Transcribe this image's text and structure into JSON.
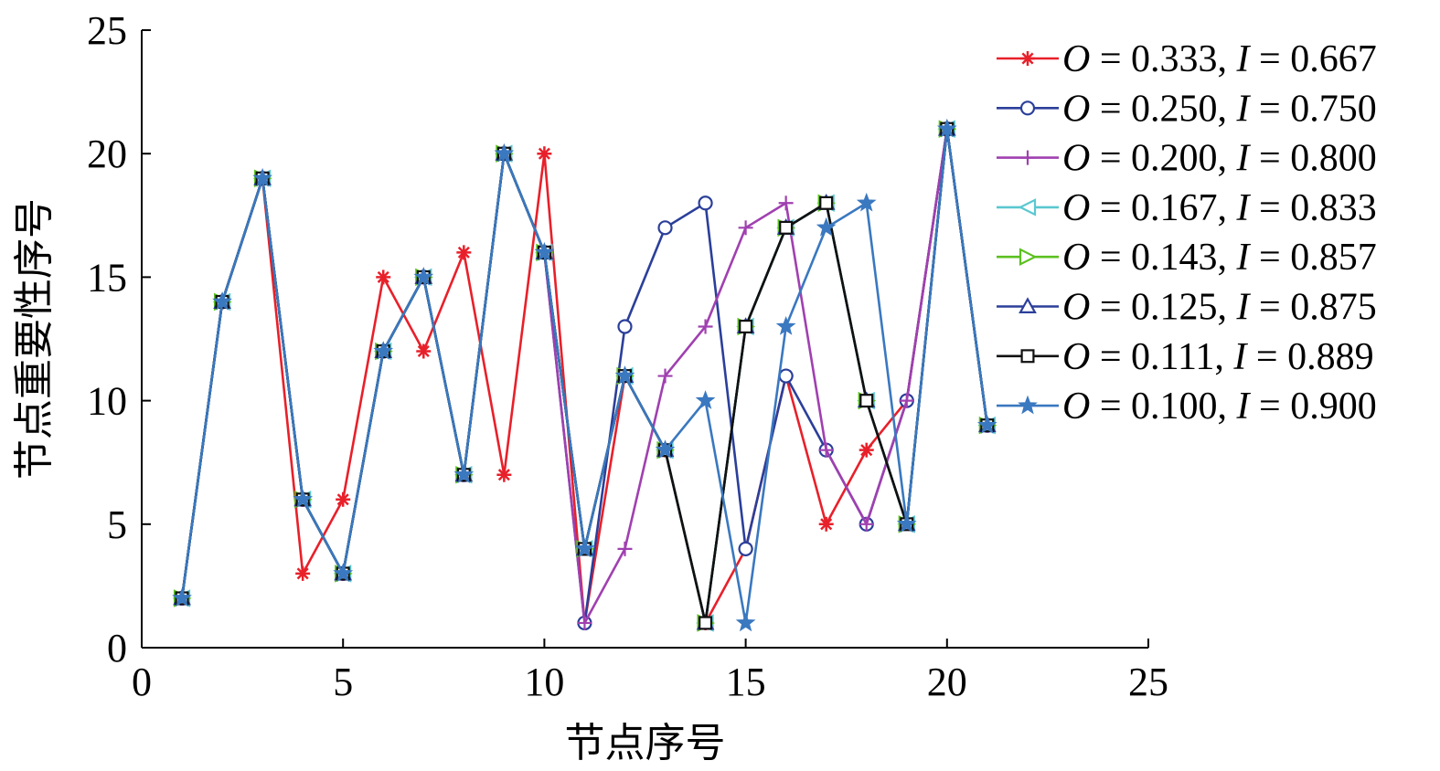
{
  "chart_data": {
    "type": "line",
    "xlabel": "节点序号",
    "ylabel": "节点重要性序号",
    "xlim": [
      0,
      25
    ],
    "ylim": [
      0,
      25
    ],
    "xticks": [
      0,
      5,
      10,
      15,
      20,
      25
    ],
    "yticks": [
      0,
      5,
      10,
      15,
      20,
      25
    ],
    "grid": false,
    "legend_position": "top-right",
    "x": [
      1,
      2,
      3,
      4,
      5,
      6,
      7,
      8,
      9,
      10,
      11,
      12,
      13,
      14,
      15,
      16,
      17,
      18,
      19,
      20,
      21
    ],
    "series": [
      {
        "name": "O = 0.333, I = 0.667",
        "var1": "O",
        "val1": " = 0.333, ",
        "var2": "I",
        "val2": " = 0.667",
        "color": "#e8202a",
        "marker": "asterisk",
        "values": [
          2,
          14,
          19,
          3,
          6,
          15,
          12,
          16,
          7,
          20,
          1,
          11,
          8,
          1,
          4,
          11,
          5,
          8,
          10,
          21,
          9
        ]
      },
      {
        "name": "O = 0.250, I = 0.750",
        "var1": "O",
        "val1": " = 0.250, ",
        "var2": "I",
        "val2": " = 0.750",
        "color": "#2b3f9a",
        "marker": "circle",
        "values": [
          2,
          14,
          19,
          6,
          3,
          12,
          15,
          7,
          20,
          16,
          1,
          13,
          17,
          18,
          4,
          11,
          8,
          5,
          10,
          21,
          9
        ]
      },
      {
        "name": "O = 0.200, I = 0.800",
        "var1": "O",
        "val1": " = 0.200, ",
        "var2": "I",
        "val2": " = 0.800",
        "color": "#a040b0",
        "marker": "plus",
        "values": [
          2,
          14,
          19,
          6,
          3,
          12,
          15,
          7,
          20,
          16,
          1,
          4,
          11,
          13,
          17,
          18,
          8,
          5,
          10,
          21,
          9
        ]
      },
      {
        "name": "O = 0.167, I = 0.833",
        "var1": "O",
        "val1": " = 0.167, ",
        "var2": "I",
        "val2": " = 0.833",
        "color": "#5ac8d0",
        "marker": "triangle-left",
        "values": [
          2,
          14,
          19,
          6,
          3,
          12,
          15,
          7,
          20,
          16,
          4,
          11,
          8,
          1,
          13,
          17,
          18,
          10,
          5,
          21,
          9
        ]
      },
      {
        "name": "O = 0.143, I = 0.857",
        "var1": "O",
        "val1": " = 0.143, ",
        "var2": "I",
        "val2": " = 0.857",
        "color": "#5cc020",
        "marker": "triangle-right",
        "values": [
          2,
          14,
          19,
          6,
          3,
          12,
          15,
          7,
          20,
          16,
          4,
          11,
          8,
          1,
          13,
          17,
          18,
          10,
          5,
          21,
          9
        ]
      },
      {
        "name": "O = 0.125, I = 0.875",
        "var1": "O",
        "val1": " = 0.125, ",
        "var2": "I",
        "val2": " = 0.875",
        "color": "#2b3f9a",
        "marker": "triangle-up",
        "values": [
          2,
          14,
          19,
          6,
          3,
          12,
          15,
          7,
          20,
          16,
          4,
          11,
          8,
          1,
          13,
          17,
          18,
          10,
          5,
          21,
          9
        ]
      },
      {
        "name": "O = 0.111, I = 0.889",
        "var1": "O",
        "val1": " = 0.111, ",
        "var2": "I",
        "val2": " = 0.889",
        "color": "#111111",
        "marker": "square",
        "values": [
          2,
          14,
          19,
          6,
          3,
          12,
          15,
          7,
          20,
          16,
          4,
          11,
          8,
          1,
          13,
          17,
          18,
          10,
          5,
          21,
          9
        ]
      },
      {
        "name": "O = 0.100, I = 0.900",
        "var1": "O",
        "val1": " = 0.100, ",
        "var2": "I",
        "val2": " = 0.900",
        "color": "#3a78c0",
        "marker": "star",
        "values": [
          2,
          14,
          19,
          6,
          3,
          12,
          15,
          7,
          20,
          16,
          4,
          11,
          8,
          10,
          1,
          13,
          17,
          18,
          5,
          21,
          9
        ]
      }
    ]
  }
}
